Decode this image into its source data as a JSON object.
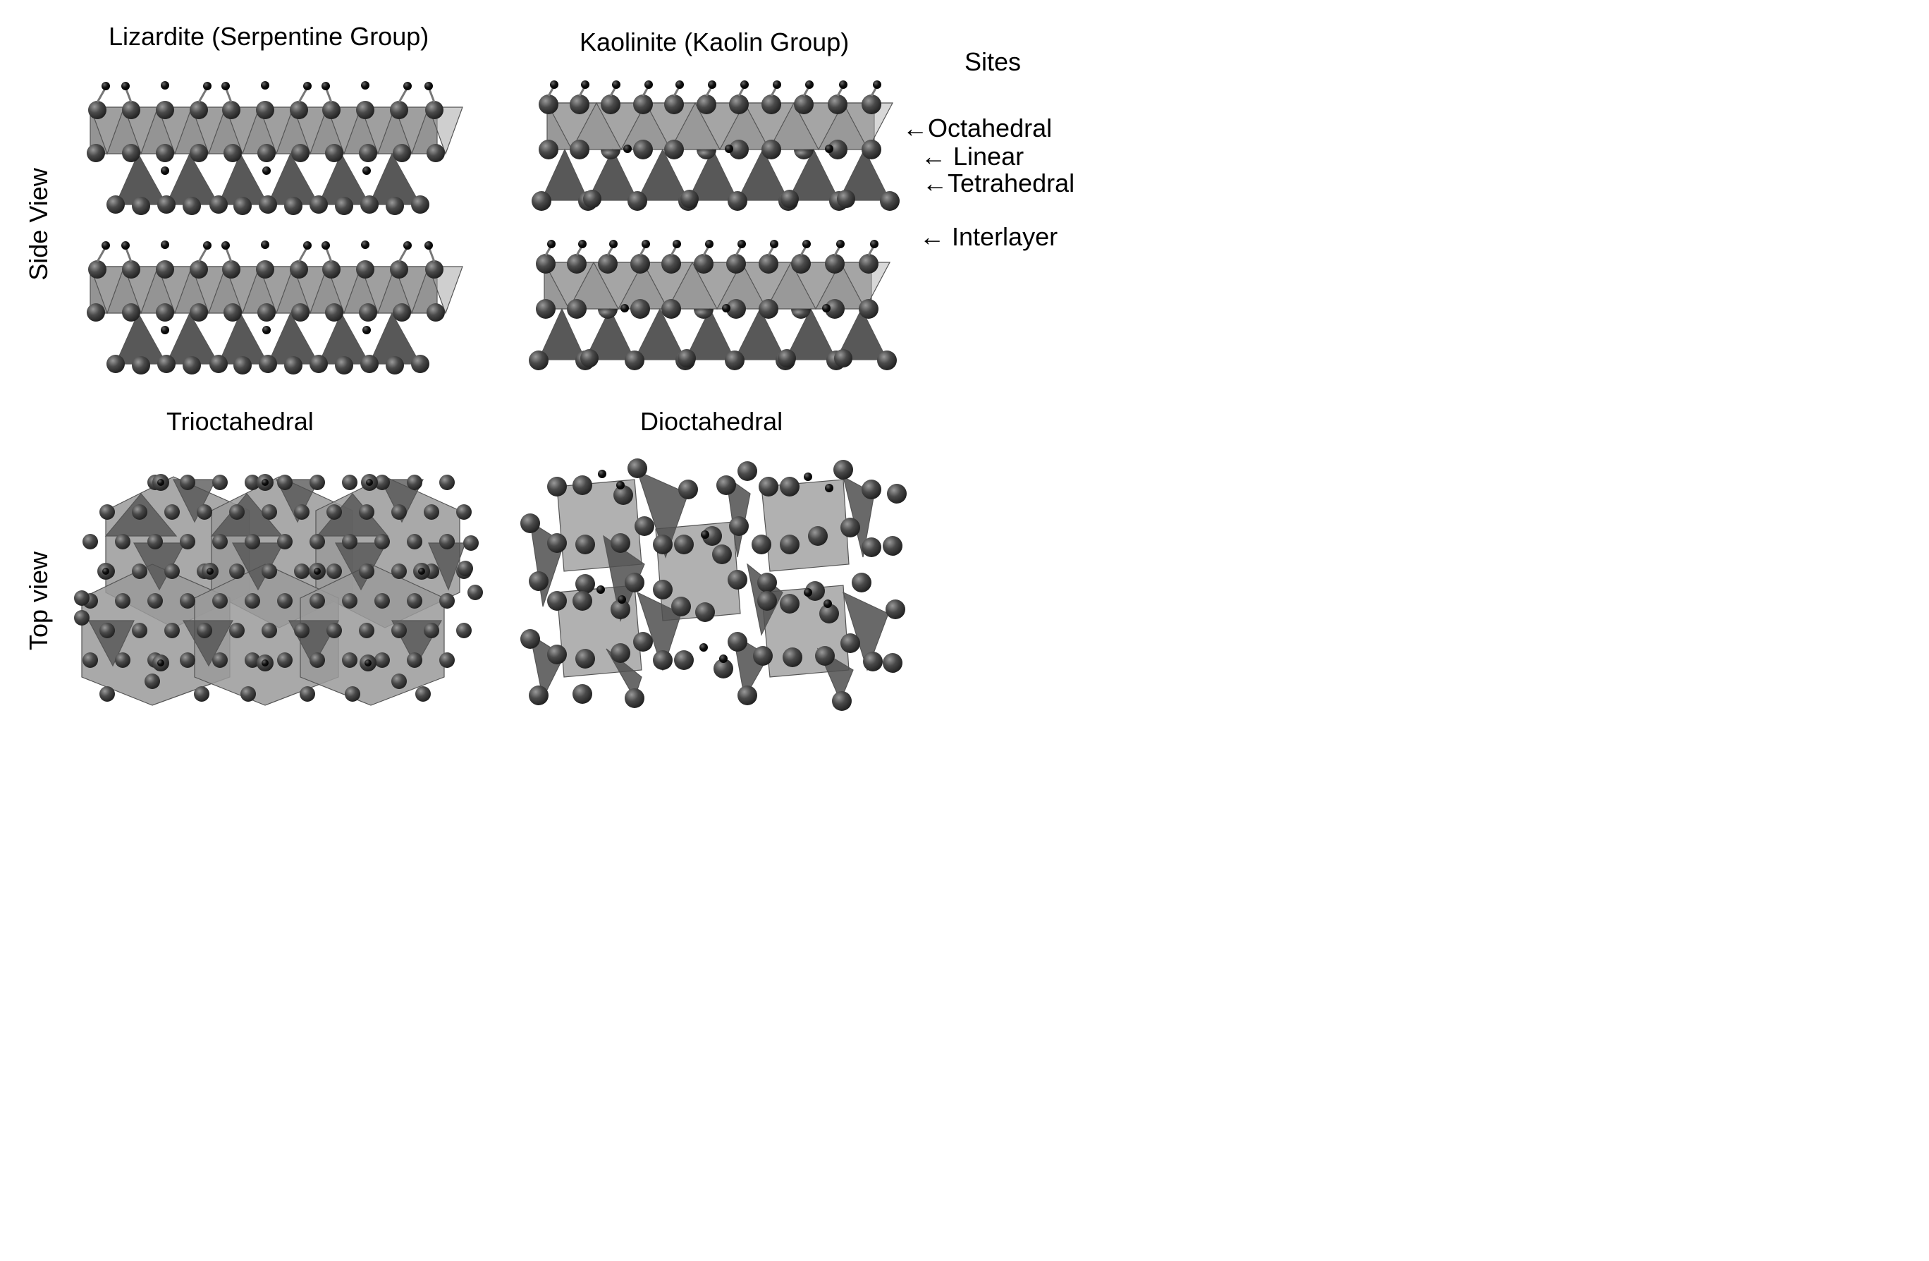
{
  "titles": {
    "lizardite": "Lizardite (Serpentine Group)",
    "kaolinite": "Kaolinite (Kaolin Group)",
    "trioctahedral": "Trioctahedral",
    "dioctahedral": "Dioctahedral"
  },
  "row_labels": {
    "side": "Side View",
    "top": "Top view"
  },
  "sites": {
    "title": "Sites",
    "items": [
      {
        "label": "Octahedral"
      },
      {
        "label": "Linear"
      },
      {
        "label": "Tetrahedral"
      },
      {
        "label": "Interlayer"
      }
    ]
  },
  "colors": {
    "background": "#ffffff",
    "octahedra": "#8e8e8e",
    "tetrahedra": "#4f4f4f",
    "oxygen": "#3a3a3a",
    "hydrogen": "#050505"
  }
}
